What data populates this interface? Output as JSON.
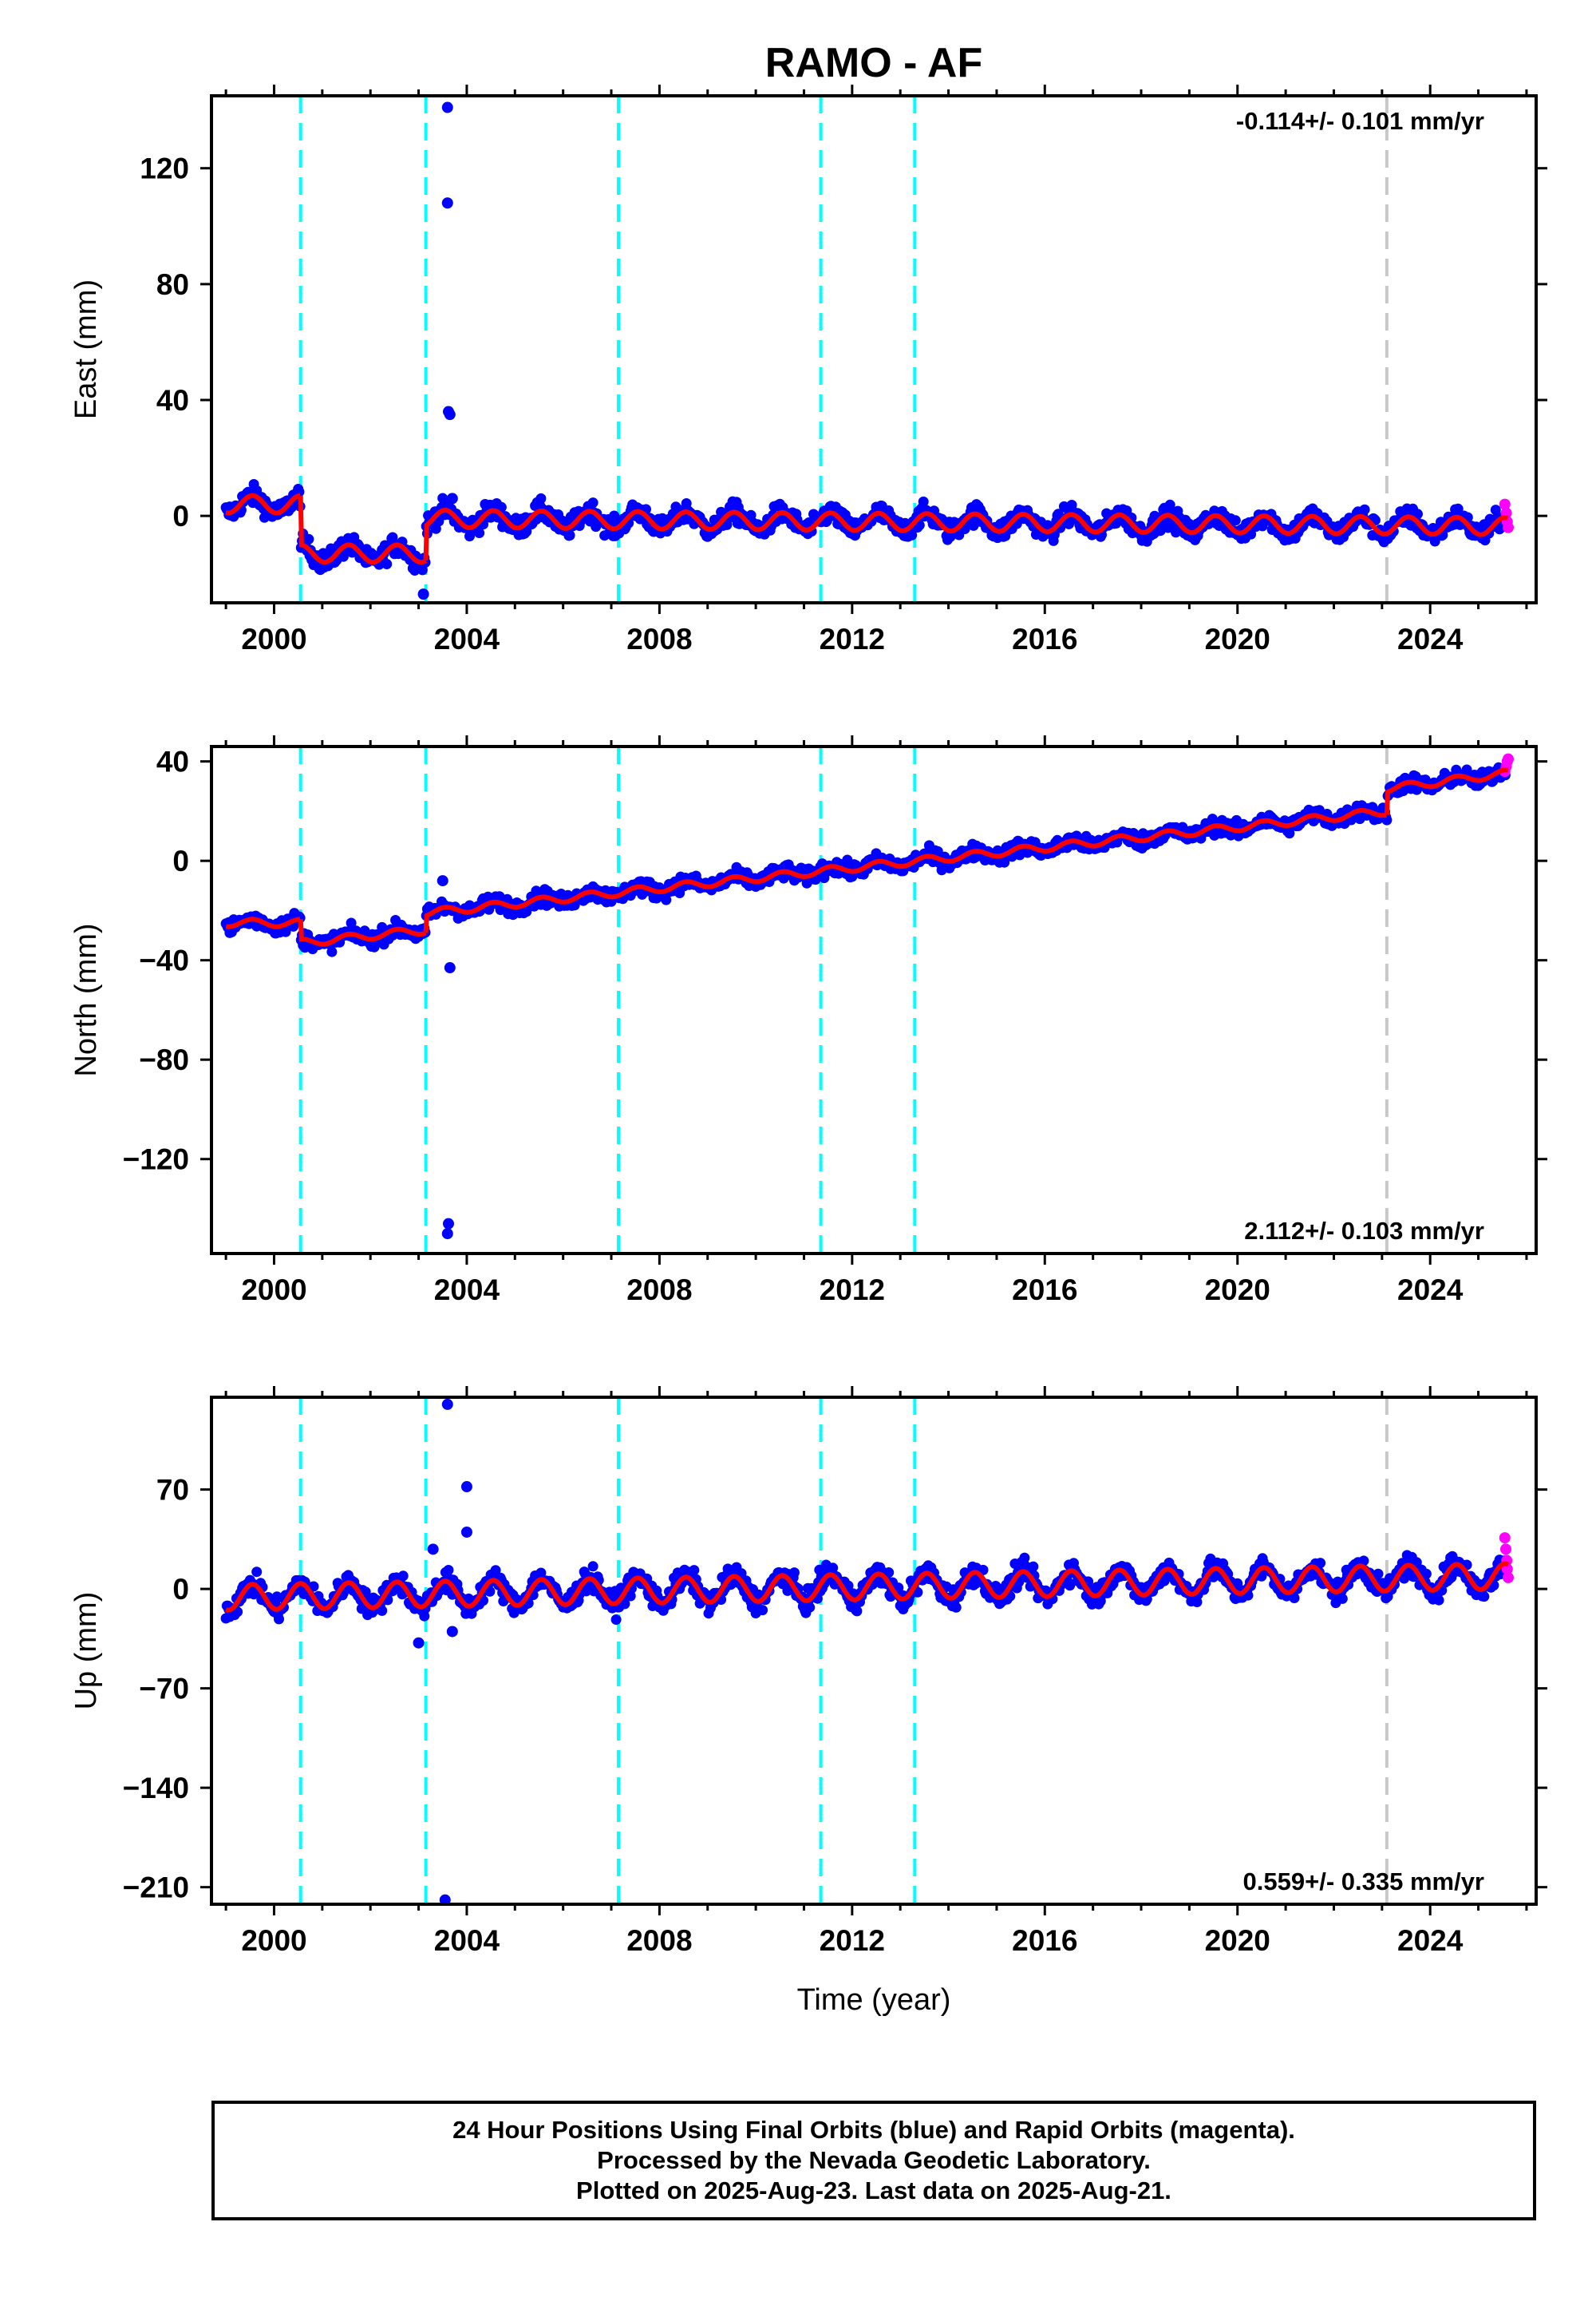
{
  "title": "RAMO - AF",
  "xlabel": "Time (year)",
  "footer": {
    "line1": "24 Hour Positions Using Final Orbits (blue) and Rapid Orbits (magenta).",
    "line2": "Processed by the Nevada Geodetic Laboratory.",
    "line3": "Plotted on 2025-Aug-23. Last data on 2025-Aug-21."
  },
  "colors": {
    "final_orbits": "#0000ff",
    "rapid_orbits": "#ff00ff",
    "model": "#ff0000",
    "equipment_change": "#00ffff",
    "other_event": "#c8c8c8"
  },
  "chart_data": [
    {
      "type": "scatter",
      "ylabel": "East (mm)",
      "rate_label": "-0.114+/- 0.101 mm/yr",
      "rate_position": "top-right",
      "xlim": [
        1998.7,
        2026.2
      ],
      "ylim": [
        -30,
        145
      ],
      "xticks": [
        2000,
        2004,
        2008,
        2012,
        2016,
        2020,
        2024
      ],
      "xticklabels": [
        "2000",
        "2004",
        "2008",
        "2012",
        "2016",
        "2020",
        "2024"
      ],
      "yticks": [
        0,
        40,
        80,
        120
      ],
      "yticklabels": [
        "0",
        "40",
        "80",
        "120"
      ],
      "vlines_cyan": [
        2000.55,
        2003.15,
        2007.15,
        2011.35,
        2013.3
      ],
      "vlines_gray": [
        2023.1
      ],
      "segments": [
        {
          "start": 1999.0,
          "end": 2000.55,
          "offset": 4,
          "rate": 0,
          "amp": 3
        },
        {
          "start": 2000.55,
          "end": 2003.15,
          "offset": -13,
          "rate": 0,
          "amp": 3
        },
        {
          "start": 2003.15,
          "end": 2025.62,
          "offset": -1,
          "rate": -0.114,
          "amp": 3
        }
      ],
      "noise": 2.5,
      "outliers": [
        [
          2003.6,
          141
        ],
        [
          2003.6,
          108
        ],
        [
          2003.62,
          36
        ],
        [
          2003.65,
          35
        ],
        [
          2003.7,
          6
        ],
        [
          2003.1,
          -27
        ]
      ],
      "rapid_points": [
        [
          2025.55,
          4
        ],
        [
          2025.58,
          1
        ],
        [
          2025.6,
          -2
        ],
        [
          2025.62,
          -4
        ]
      ]
    },
    {
      "type": "scatter",
      "ylabel": "North (mm)",
      "rate_label": "2.112+/- 0.103 mm/yr",
      "rate_position": "bottom-right",
      "xlim": [
        1998.7,
        2026.2
      ],
      "ylim": [
        -158,
        46
      ],
      "xticks": [
        2000,
        2004,
        2008,
        2012,
        2016,
        2020,
        2024
      ],
      "xticklabels": [
        "2000",
        "2004",
        "2008",
        "2012",
        "2016",
        "2020",
        "2024"
      ],
      "yticks": [
        -120,
        -80,
        -40,
        0,
        40
      ],
      "yticklabels": [
        "−120",
        "−80",
        "−40",
        "0",
        "40"
      ],
      "vlines_cyan": [
        2000.55,
        2003.15,
        2007.15,
        2011.35,
        2013.3
      ],
      "vlines_gray": [
        2023.1
      ],
      "segments": [
        {
          "start": 1999.0,
          "end": 2000.55,
          "offset": -25,
          "rate": 0,
          "amp": 1.5
        },
        {
          "start": 2000.55,
          "end": 2003.15,
          "offset": -33,
          "rate": 2.0,
          "amp": 1.5
        },
        {
          "start": 2003.15,
          "end": 2023.1,
          "offset": -21,
          "rate": 2.05,
          "amp": 1.5
        },
        {
          "start": 2023.1,
          "end": 2025.62,
          "offset": 29,
          "rate": 2.5,
          "amp": 1.5
        }
      ],
      "noise": 2.2,
      "outliers": [
        [
          2003.6,
          -150
        ],
        [
          2003.62,
          -146
        ],
        [
          2003.65,
          -43
        ],
        [
          2003.5,
          -8
        ]
      ],
      "rapid_points": [
        [
          2025.55,
          36
        ],
        [
          2025.58,
          38
        ],
        [
          2025.6,
          40
        ],
        [
          2025.62,
          41
        ]
      ]
    },
    {
      "type": "scatter",
      "ylabel": "Up (mm)",
      "rate_label": "0.559+/- 0.335 mm/yr",
      "rate_position": "bottom-right",
      "xlim": [
        1998.7,
        2026.2
      ],
      "ylim": [
        -222,
        135
      ],
      "xticks": [
        2000,
        2004,
        2008,
        2012,
        2016,
        2020,
        2024
      ],
      "xticklabels": [
        "2000",
        "2004",
        "2008",
        "2012",
        "2016",
        "2020",
        "2024"
      ],
      "yticks": [
        -210,
        -140,
        -70,
        0,
        70
      ],
      "yticklabels": [
        "−210",
        "−140",
        "−70",
        "0",
        "70"
      ],
      "vlines_cyan": [
        2000.55,
        2003.15,
        2007.15,
        2011.35,
        2013.3
      ],
      "vlines_gray": [
        2023.1
      ],
      "segments": [
        {
          "start": 1999.0,
          "end": 2025.62,
          "offset": -6,
          "rate": 0.559,
          "amp": 9
        }
      ],
      "noise": 5.5,
      "outliers": [
        [
          2003.6,
          130
        ],
        [
          2004.0,
          72
        ],
        [
          2004.0,
          40
        ],
        [
          2003.55,
          -219
        ],
        [
          2003.7,
          -30
        ],
        [
          2003.0,
          -38
        ],
        [
          2003.3,
          28
        ]
      ],
      "rapid_points": [
        [
          2025.55,
          36
        ],
        [
          2025.57,
          28
        ],
        [
          2025.59,
          20
        ],
        [
          2025.6,
          14
        ],
        [
          2025.62,
          8
        ]
      ]
    }
  ]
}
